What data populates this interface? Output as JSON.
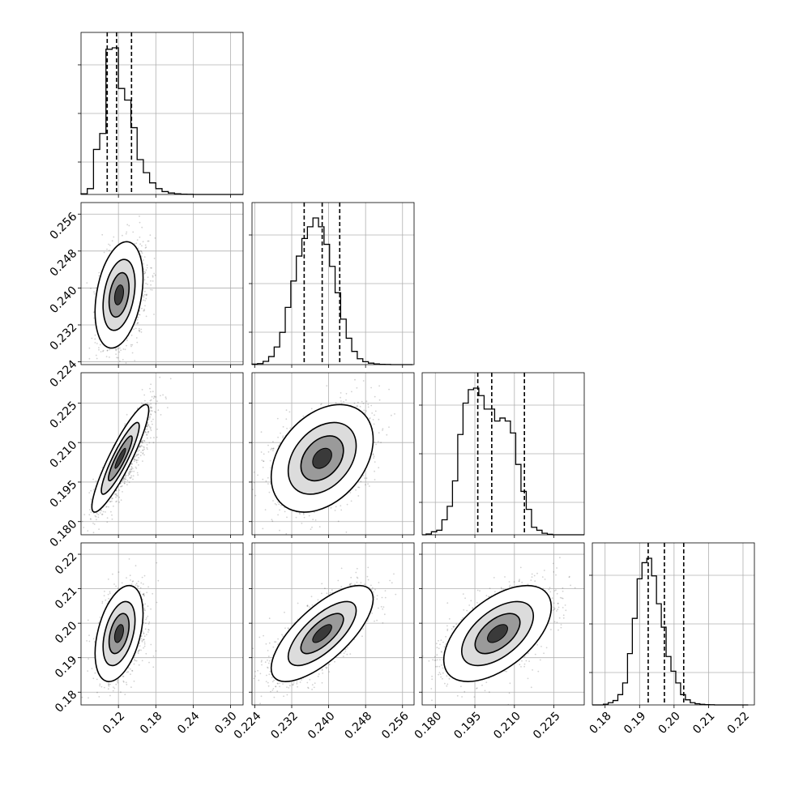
{
  "chart_data": {
    "type": "corner",
    "n_params": 4,
    "quantile_levels": [
      0.16,
      0.5,
      0.84
    ],
    "grid": true,
    "histogram_y_ticks_labeled": false,
    "params": [
      {
        "range": [
          0.06,
          0.32
        ],
        "ticks": [
          0.12,
          0.18,
          0.24,
          0.3
        ],
        "tick_labels": [
          "0.12",
          "0.18",
          "0.24",
          "0.30"
        ],
        "quantiles": [
          0.102,
          0.117,
          0.141
        ],
        "hist": {
          "edges_start": 0.06,
          "bin_width": 0.01,
          "counts": [
            0.5,
            4,
            31,
            42,
            100,
            101,
            73,
            65,
            46,
            24,
            15,
            8,
            4,
            2,
            1,
            0.5,
            0.2,
            0.1,
            0,
            0,
            0,
            0,
            0,
            0,
            0,
            0
          ]
        }
      },
      {
        "range": [
          0.2234,
          0.2585
        ],
        "ticks": [
          0.224,
          0.232,
          0.24,
          0.248,
          0.256
        ],
        "tick_labels": [
          "0.224",
          "0.232",
          "0.240",
          "0.248",
          "0.256"
        ],
        "quantiles": [
          0.2347,
          0.2386,
          0.2424
        ],
        "hist": {
          "edges_start": 0.2234,
          "bin_width": 0.0012,
          "counts": [
            0.3,
            0.7,
            2.2,
            5.5,
            12,
            22,
            39,
            57,
            74,
            86,
            94,
            100,
            94,
            82,
            67,
            49,
            31,
            18,
            9,
            4,
            2,
            1,
            0.5,
            0.2,
            0.1,
            0,
            0,
            0,
            0
          ]
        }
      },
      {
        "range": [
          0.175,
          0.2365
        ],
        "ticks": [
          0.18,
          0.195,
          0.21,
          0.225
        ],
        "tick_labels": [
          "0.180",
          "0.195",
          "0.210",
          "0.225"
        ],
        "quantiles": [
          0.1961,
          0.2014,
          0.2138
        ],
        "hist": {
          "edges_start": 0.1765,
          "bin_width": 0.002,
          "counts": [
            0.5,
            2,
            3,
            10,
            19,
            36,
            67,
            88,
            97,
            98,
            93,
            84,
            84,
            76,
            78,
            76,
            68,
            47,
            29,
            17,
            5,
            3,
            1,
            0.3,
            0,
            0,
            0,
            0,
            0,
            0
          ]
        }
      },
      {
        "range": [
          0.1763,
          0.2233
        ],
        "ticks": [
          0.18,
          0.19,
          0.2,
          0.21,
          0.22
        ],
        "tick_labels": [
          "0.18",
          "0.19",
          "0.20",
          "0.21",
          "0.22"
        ],
        "quantiles": [
          0.1925,
          0.1972,
          0.2028
        ],
        "hist": {
          "edges_start": 0.1795,
          "bin_width": 0.0014,
          "counts": [
            0.5,
            1.5,
            3,
            7,
            15,
            35,
            59,
            86,
            97,
            100,
            88,
            69,
            53,
            33,
            23,
            15,
            7,
            3.5,
            1.5,
            0.8,
            0.4,
            0.2,
            0.1,
            0,
            0,
            0,
            0,
            0,
            0,
            0
          ]
        }
      }
    ],
    "pairs": [
      {
        "row": 1,
        "col": 0,
        "mean": [
          0.121,
          0.2385
        ],
        "sd": [
          0.016,
          0.0048
        ],
        "corr": 0.32
      },
      {
        "row": 2,
        "col": 0,
        "mean": [
          0.123,
          0.204
        ],
        "sd": [
          0.019,
          0.0085
        ],
        "corr": 0.9
      },
      {
        "row": 2,
        "col": 1,
        "mean": [
          0.2386,
          0.204
        ],
        "sd": [
          0.0046,
          0.0085
        ],
        "corr": 0.35
      },
      {
        "row": 3,
        "col": 0,
        "mean": [
          0.121,
          0.197
        ],
        "sd": [
          0.016,
          0.0058
        ],
        "corr": 0.42
      },
      {
        "row": 3,
        "col": 1,
        "mean": [
          0.2386,
          0.197
        ],
        "sd": [
          0.0046,
          0.0058
        ],
        "corr": 0.72
      },
      {
        "row": 3,
        "col": 2,
        "mean": [
          0.2036,
          0.197
        ],
        "sd": [
          0.0085,
          0.0058
        ],
        "corr": 0.55
      }
    ]
  }
}
